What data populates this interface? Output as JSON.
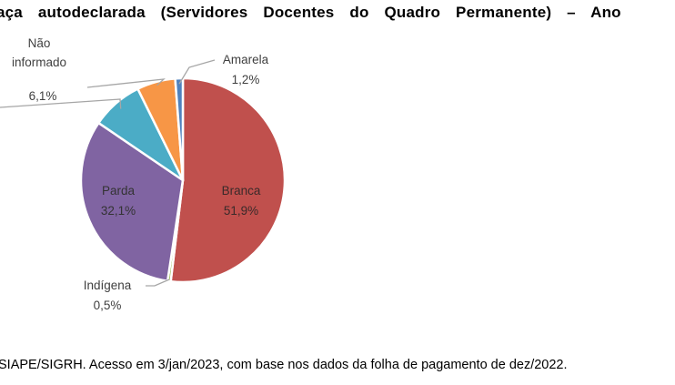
{
  "title": "aça autodeclarada (Servidores Docentes do Quadro Permanente) – Ano",
  "source_note": "SIAPE/SIGRH. Acesso em 3/jan/2023, com base nos dados da folha de pagamento de dez/2022.",
  "chart_data": {
    "type": "pie",
    "start_angle_deg": 0,
    "direction": "clockwise",
    "slices": [
      {
        "label": "Branca",
        "value": 51.9,
        "value_label": "51,9%",
        "color": "#c0504d",
        "label_position": "inside",
        "label_color": "#3a2a2a"
      },
      {
        "label": "Indígena",
        "value": 0.5,
        "value_label": "0,5%",
        "color": "#9bbb59",
        "label_position": "outside-leader",
        "label_color": "#404040"
      },
      {
        "label": "Parda",
        "value": 32.1,
        "value_label": "32,1%",
        "color": "#8064a2",
        "label_position": "inside",
        "label_color": "#333333"
      },
      {
        "label": "",
        "value": 8.2,
        "value_label": "",
        "color": "#4bacc6",
        "label_position": "outside-leader",
        "label_color": "#404040"
      },
      {
        "label": "Não informado",
        "value": 6.1,
        "value_label": "6,1%",
        "color": "#f79646",
        "label_position": "outside-leader",
        "label_color": "#404040"
      },
      {
        "label": "Amarela",
        "value": 1.2,
        "value_label": "1,2%",
        "color": "#4f81bd",
        "label_position": "outside-leader",
        "label_color": "#404040"
      }
    ]
  }
}
